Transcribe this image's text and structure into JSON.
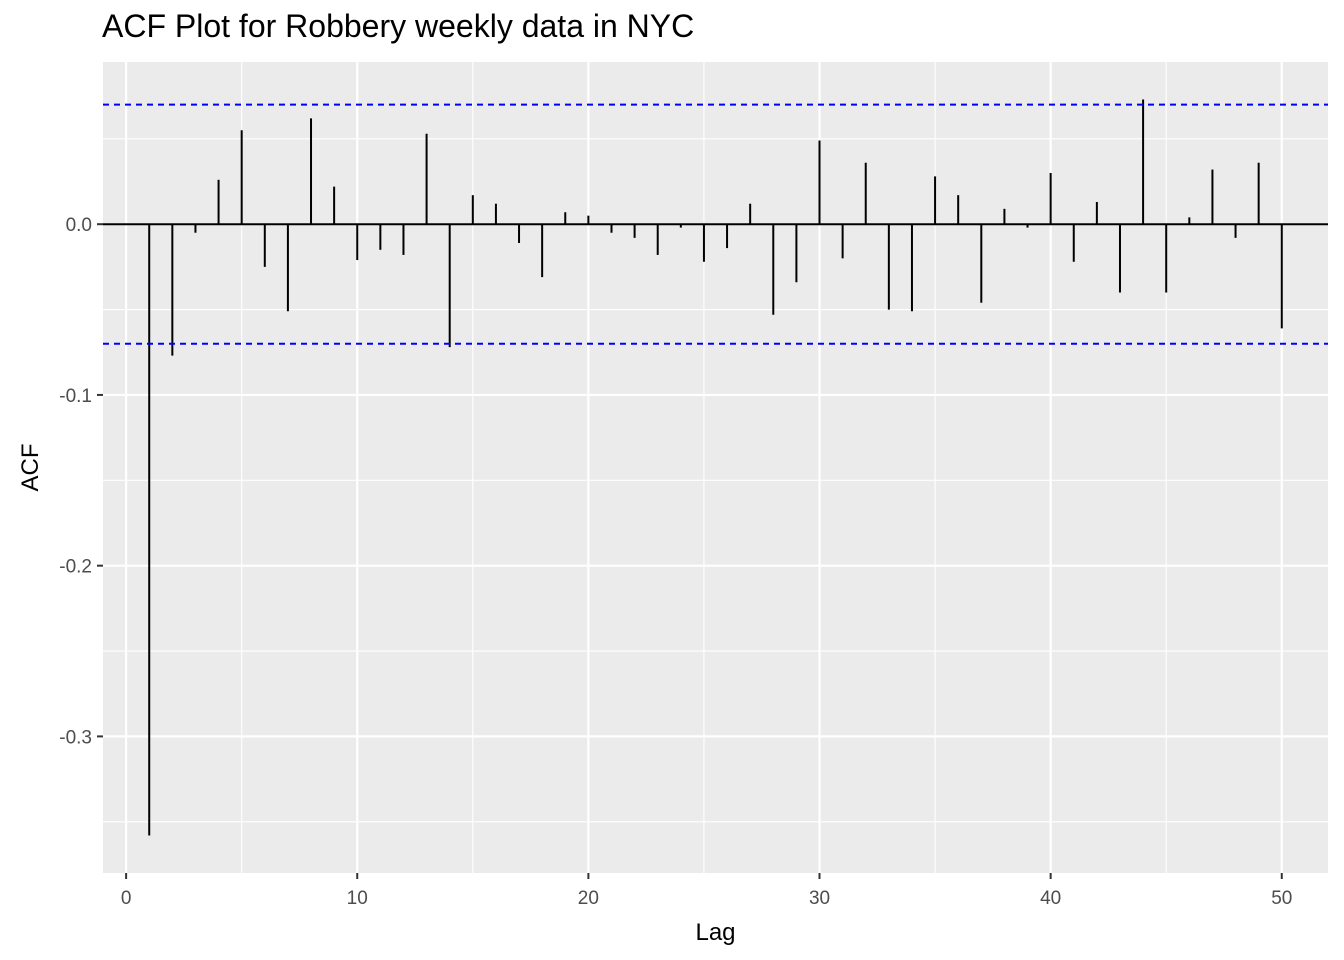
{
  "chart_data": {
    "type": "bar",
    "title": "ACF Plot for Robbery weekly data in NYC",
    "xlabel": "Lag",
    "ylabel": "ACF",
    "xlim": [
      -1,
      52
    ],
    "ylim": [
      -0.38,
      0.095
    ],
    "x_ticks": [
      0,
      10,
      20,
      30,
      40,
      50
    ],
    "x_tick_labels": [
      "0",
      "10",
      "20",
      "30",
      "40",
      "50"
    ],
    "y_ticks": [
      -0.3,
      -0.2,
      -0.1,
      0.0
    ],
    "y_tick_labels": [
      "-0.3",
      "-0.2",
      "-0.1",
      "0.0"
    ],
    "confidence_bounds": [
      0.07,
      -0.07
    ],
    "colors": {
      "panel": "#ebebeb",
      "grid": "#ffffff",
      "bars": "#000000",
      "confidence_lines": "#0000ff"
    },
    "series": [
      {
        "lags": [
          1,
          2,
          3,
          4,
          5,
          6,
          7,
          8,
          9,
          10,
          11,
          12,
          13,
          14,
          15,
          16,
          17,
          18,
          19,
          20,
          21,
          22,
          23,
          24,
          25,
          26,
          27,
          28,
          29,
          30,
          31,
          32,
          33,
          34,
          35,
          36,
          37,
          38,
          39,
          40,
          41,
          42,
          43,
          44,
          45,
          46,
          47,
          48,
          49,
          50
        ],
        "acf": [
          -0.358,
          -0.077,
          -0.005,
          0.026,
          0.055,
          -0.025,
          -0.051,
          0.062,
          0.022,
          -0.021,
          -0.015,
          -0.018,
          0.053,
          -0.072,
          0.017,
          0.012,
          -0.011,
          -0.031,
          0.007,
          0.005,
          -0.005,
          -0.008,
          -0.018,
          -0.002,
          -0.022,
          -0.014,
          0.012,
          -0.053,
          -0.034,
          0.049,
          -0.02,
          0.036,
          -0.05,
          -0.051,
          0.028,
          0.017,
          -0.046,
          0.009,
          -0.002,
          0.03,
          -0.022,
          0.013,
          -0.04,
          0.073,
          -0.04,
          0.004,
          0.032,
          -0.008,
          0.036,
          -0.061
        ]
      }
    ]
  }
}
